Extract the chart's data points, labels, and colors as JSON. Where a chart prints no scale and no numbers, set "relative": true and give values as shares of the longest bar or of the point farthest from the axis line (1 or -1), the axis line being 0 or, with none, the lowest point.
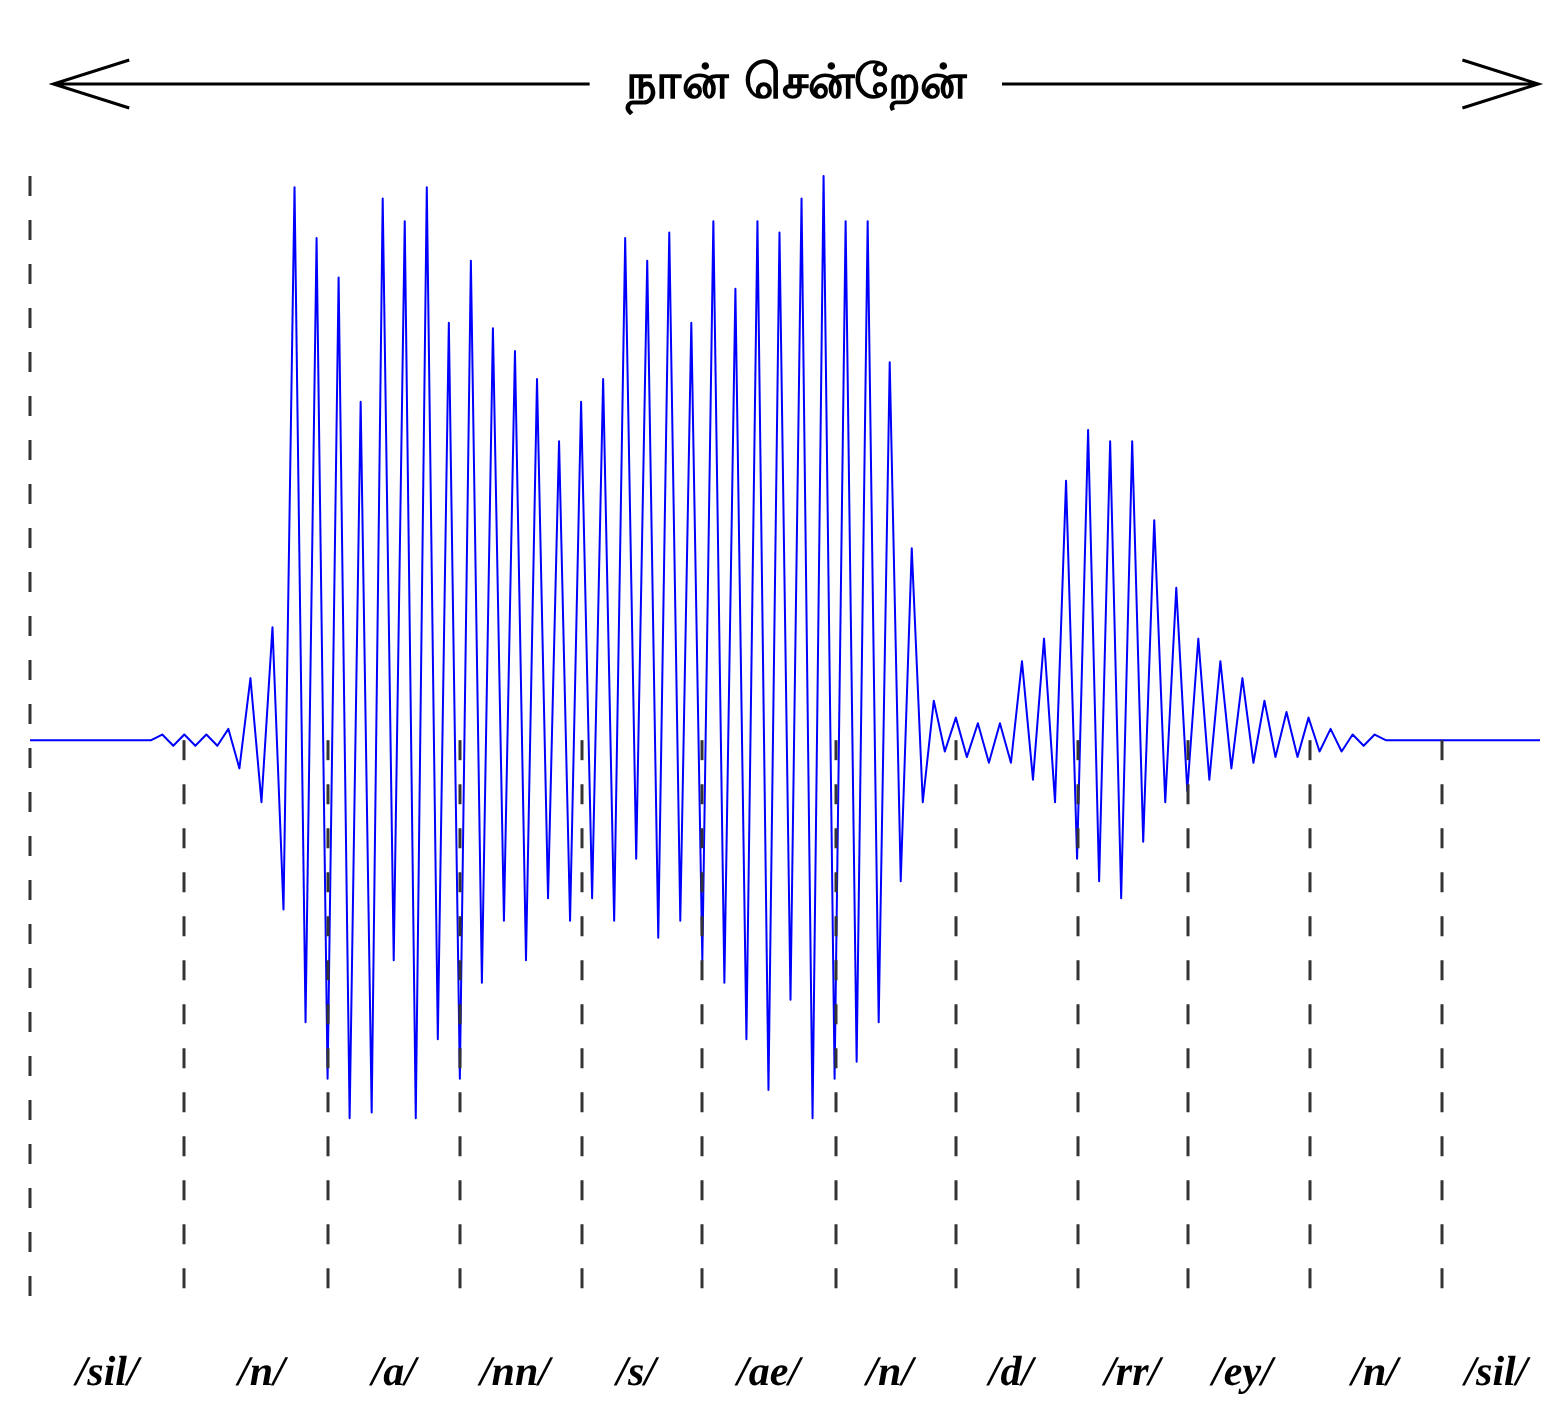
{
  "chart_data": {
    "type": "line",
    "title": "நான் சென்றேன்",
    "relative": true,
    "tick_labels": "x",
    "grid": "x",
    "marker": "none",
    "line_style": "solid",
    "categories": [
      null,
      null,
      null,
      null,
      null,
      null,
      null,
      "/sil/",
      null,
      null,
      null,
      null,
      null,
      null,
      null,
      null,
      null,
      null,
      null,
      null,
      null,
      "/n/",
      null,
      null,
      null,
      null,
      null,
      null,
      null,
      null,
      null,
      null,
      null,
      "/a/",
      null,
      null,
      null,
      null,
      null,
      null,
      null,
      null,
      null,
      null,
      "/nn/",
      null,
      null,
      null,
      null,
      null,
      null,
      null,
      null,
      null,
      null,
      "/s/",
      null,
      null,
      null,
      null,
      null,
      null,
      null,
      null,
      null,
      null,
      null,
      "/ae/",
      null,
      null,
      null,
      null,
      null,
      null,
      null,
      null,
      null,
      null,
      "/n/",
      null,
      null,
      null,
      null,
      null,
      null,
      null,
      null,
      null,
      null,
      "/d/",
      null,
      null,
      null,
      null,
      null,
      null,
      null,
      null,
      null,
      null,
      "/rr/",
      null,
      null,
      null,
      null,
      null,
      null,
      null,
      null,
      null,
      "/ey/",
      null,
      null,
      null,
      null,
      null,
      null,
      null,
      null,
      null,
      null,
      null,
      "/n/",
      null,
      null,
      null,
      null,
      null,
      null,
      null,
      null,
      null,
      null,
      "/sil/",
      null,
      null,
      null,
      null
    ],
    "series": [
      {
        "color": "#0000ff",
        "values": [
          0,
          0,
          0,
          0,
          0,
          0,
          0,
          0,
          0,
          0,
          0,
          0,
          0.01,
          -0.01,
          0.01,
          -0.01,
          0.01,
          -0.01,
          0.02,
          -0.05,
          0.11,
          -0.11,
          0.2,
          -0.3,
          0.98,
          -0.5,
          0.89,
          -0.6,
          0.82,
          -0.67,
          0.6,
          -0.66,
          0.96,
          -0.39,
          0.92,
          -0.67,
          0.98,
          -0.53,
          0.74,
          -0.6,
          0.85,
          -0.43,
          0.73,
          -0.32,
          0.69,
          -0.39,
          0.64,
          -0.28,
          0.53,
          -0.32,
          0.6,
          -0.28,
          0.64,
          -0.32,
          0.89,
          -0.21,
          0.85,
          -0.35,
          0.9,
          -0.32,
          0.74,
          -0.39,
          0.92,
          -0.43,
          0.8,
          -0.53,
          0.92,
          -0.62,
          0.9,
          -0.46,
          0.96,
          -0.67,
          1,
          -0.6,
          0.92,
          -0.57,
          0.92,
          -0.5,
          0.67,
          -0.25,
          0.34,
          -0.11,
          0.07,
          -0.02,
          0.04,
          -0.03,
          0.03,
          -0.04,
          0.03,
          -0.04,
          0.14,
          -0.07,
          0.18,
          -0.11,
          0.46,
          -0.21,
          0.55,
          -0.25,
          0.53,
          -0.28,
          0.53,
          -0.18,
          0.39,
          -0.11,
          0.27,
          -0.09,
          0.18,
          -0.07,
          0.14,
          -0.05,
          0.11,
          -0.04,
          0.07,
          -0.03,
          0.05,
          -0.03,
          0.04,
          -0.02,
          0.02,
          -0.02,
          0.01,
          -0.01,
          0.01,
          0,
          0,
          0,
          0,
          0,
          0,
          0,
          0,
          0,
          0,
          0,
          0,
          0,
          0,
          0
        ]
      }
    ]
  }
}
